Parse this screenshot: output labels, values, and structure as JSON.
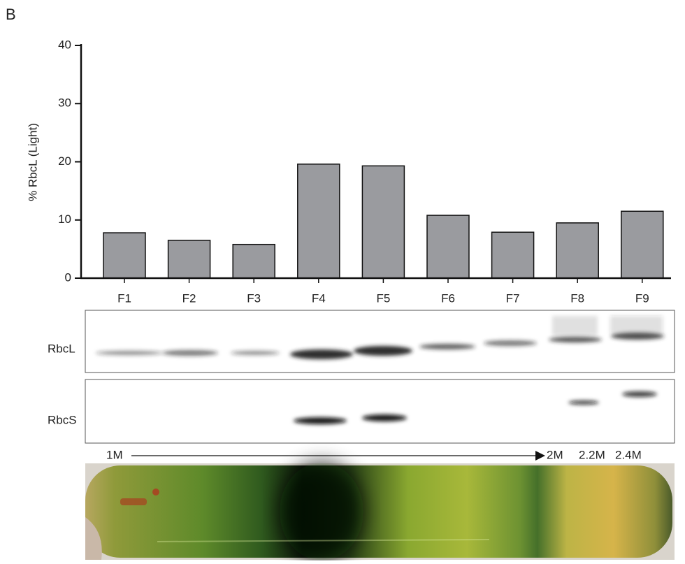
{
  "panel_label": "B",
  "chart_data": {
    "type": "bar",
    "ylabel": "% RbcL (Light)",
    "categories": [
      "F1",
      "F2",
      "F3",
      "F4",
      "F5",
      "F6",
      "F7",
      "F8",
      "F9"
    ],
    "values": [
      7.8,
      6.5,
      5.8,
      19.6,
      19.3,
      10.8,
      7.9,
      9.5,
      11.5
    ],
    "color": "#9a9b9f",
    "ylim": [
      0,
      40
    ],
    "yticks": [
      0,
      10,
      20,
      30,
      40
    ]
  },
  "blots": [
    {
      "label": "RbcL"
    },
    {
      "label": "RbcS"
    }
  ],
  "gradient": {
    "start": "1M",
    "end": "2M",
    "labels": [
      "2.2M",
      "2.4M"
    ]
  }
}
